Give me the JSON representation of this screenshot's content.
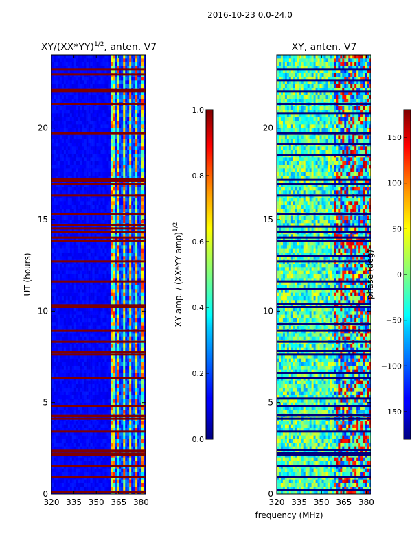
{
  "figure": {
    "suptitle": "2016-10-23 0.0-24.0",
    "xlabel": "frequency (MHz)"
  },
  "chart_data": [
    {
      "type": "heatmap",
      "title": "XY/(XX*YY)",
      "title_exp": "1/2",
      "title_suffix": ", anten. V7",
      "xlabel": "",
      "ylabel": "UT (hours)",
      "x_ticks": [
        320,
        335,
        350,
        365,
        380
      ],
      "y_ticks": [
        0,
        5,
        10,
        15,
        20
      ],
      "xlim": [
        320,
        383
      ],
      "ylim": [
        0,
        24
      ],
      "colormap": "jet",
      "colorbar": {
        "label": "XY amp. / (XX*YY amp)",
        "label_exp": "1/2",
        "range": [
          0.0,
          1.0
        ],
        "ticks": [
          "0.0",
          "0.2",
          "0.4",
          "0.6",
          "0.8",
          "1.0"
        ]
      },
      "flagged_rows_hours": [
        0.1,
        0.9,
        1.5,
        2.1,
        2.2,
        2.35,
        3.4,
        4.1,
        4.25,
        4.8,
        6.3,
        7.6,
        7.75,
        8.3,
        8.9,
        10.2,
        10.3,
        11.6,
        12.7,
        13.8,
        14.0,
        14.3,
        14.5,
        14.7,
        15.3,
        16.3,
        16.95,
        17.1,
        17.2,
        19.7,
        21.3,
        22.0,
        22.1,
        22.9,
        23.2
      ],
      "active_band_MHz": [
        360,
        382
      ]
    },
    {
      "type": "heatmap",
      "title": "XY, anten. V7",
      "xlabel": "",
      "ylabel": "",
      "x_ticks": [
        320,
        335,
        350,
        365,
        380
      ],
      "y_ticks": [
        0,
        5,
        10,
        15,
        20
      ],
      "xlim": [
        320,
        383
      ],
      "ylim": [
        0,
        24
      ],
      "colormap": "jet",
      "colorbar": {
        "label": "phase (deg)",
        "range": [
          -180,
          180
        ],
        "ticks": [
          "−150",
          "−100",
          "−50",
          "0",
          "50",
          "100",
          "150"
        ]
      },
      "flagged_rows_hours": [
        0.2,
        0.9,
        1.5,
        2.1,
        2.25,
        2.4,
        3.4,
        4.1,
        4.3,
        4.8,
        5.2,
        6.3,
        6.6,
        7.6,
        7.8,
        8.3,
        8.9,
        9.3,
        10.2,
        10.35,
        11.2,
        11.6,
        12.7,
        13.0,
        13.8,
        14.0,
        14.3,
        14.6,
        15.3,
        16.3,
        16.95,
        17.15,
        18.5,
        19.1,
        19.7,
        20.8,
        21.3,
        22.0,
        22.6,
        23.2
      ]
    }
  ]
}
